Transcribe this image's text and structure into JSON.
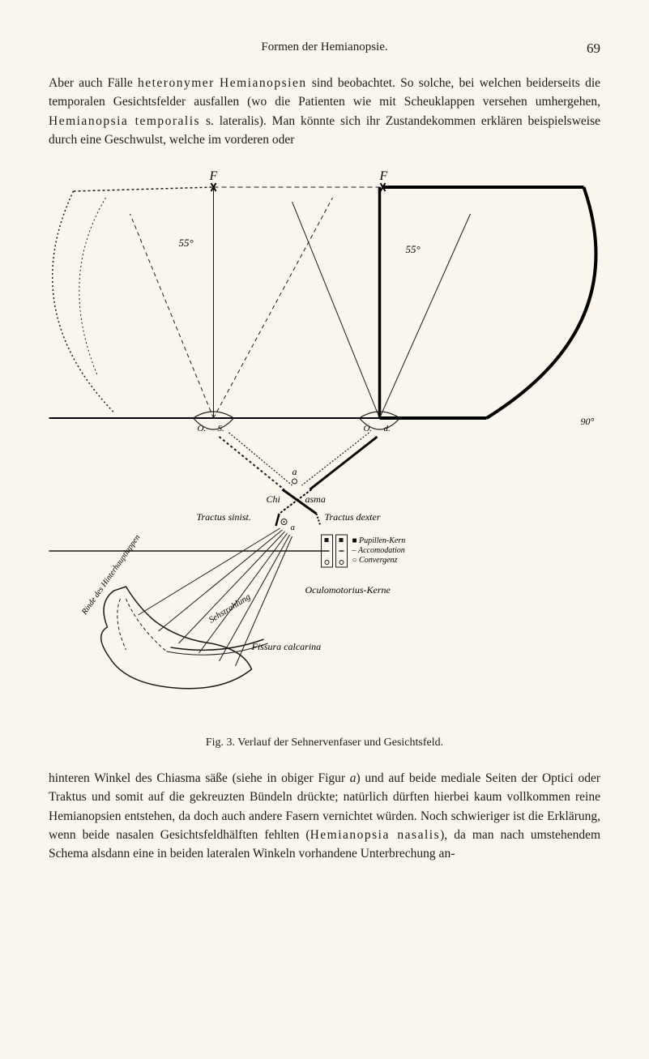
{
  "header": {
    "title": "Formen der Hemianopsie.",
    "page_number": "69"
  },
  "paragraphs": {
    "p1_html": "Aber auch Fälle <span class=\"spaced\">heteronymer</span> <span class=\"spaced\">Hemianopsien</span> sind beobachtet. So solche, bei welchen beiderseits die temporalen Gesichtsfelder ausfallen (wo die Patienten wie mit Scheuklappen versehen umhergehen, <span class=\"spaced\">Hemianopsia temporalis</span> s. lateralis). Man könnte sich ihr Zustandekommen erklären beispielsweise durch eine Geschwulst, welche im vorderen oder",
    "p2_html": "hinteren Winkel des Chiasma säße (siehe in obiger Figur <i>a</i>) und auf beide mediale Seiten der Optici oder Traktus und somit auf die gekreuzten Bündeln drückte; natürlich dürften hierbei kaum vollkommen reine Hemianopsien entstehen, da doch auch andere Fasern vernichtet würden. Noch schwieriger ist die Erklärung, wenn beide nasalen Gesichtsfeldhälften fehlten (<span class=\"spaced\">Hemianopsia nasalis</span>), da man nach umstehendem Schema alsdann eine in beiden lateralen Winkeln vorhandene Unterbrechung an-"
  },
  "figure": {
    "caption": "Fig. 3.   Verlauf der Sehnervenfaser und Gesichtsfeld.",
    "labels": {
      "F_left": "F",
      "F_right": "F",
      "deg_left": "55°",
      "deg_right": "55°",
      "deg_side": "90°",
      "O_left": "O.",
      "S_left": "S.",
      "O_right": "O.",
      "d_right": "d.",
      "a_top": "a",
      "chiasma_prefix": "Chi",
      "chiasma_suffix": "asma",
      "tractus_sinist": "Tractus sinist.",
      "tractus_dexter": "Tractus dexter",
      "a_mid": "a",
      "box_line1_marker": "■",
      "box_line1": "Pupillen-Kern",
      "box_line2_marker": "–",
      "box_line2": "Accomodation",
      "box_line3_marker": "○",
      "box_line3": "Convergenz",
      "oculomotorius": "Oculomotorius-Kerne",
      "sehstrahlung": "Sehstrahlung",
      "fissura": "Fissura calcarina",
      "rinde": "Rinde des Hinterhauptlappen"
    },
    "colors": {
      "line": "#1a1a1a",
      "bg": "#f9f7ed",
      "thick_line": "#000000"
    },
    "stroke_widths": {
      "thin": 1,
      "medium": 1.5,
      "thick": 3,
      "thicker": 5
    }
  }
}
